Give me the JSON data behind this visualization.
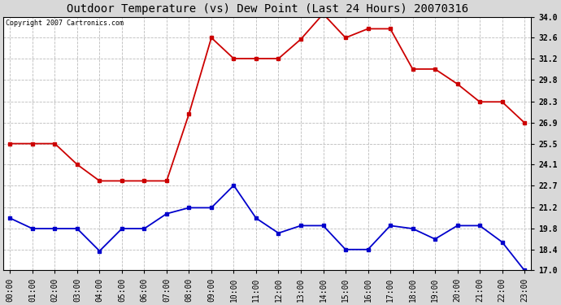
{
  "title": "Outdoor Temperature (vs) Dew Point (Last 24 Hours) 20070316",
  "copyright": "Copyright 2007 Cartronics.com",
  "hours": [
    "00:00",
    "01:00",
    "02:00",
    "03:00",
    "04:00",
    "05:00",
    "06:00",
    "07:00",
    "08:00",
    "09:00",
    "10:00",
    "11:00",
    "12:00",
    "13:00",
    "14:00",
    "15:00",
    "16:00",
    "17:00",
    "18:00",
    "19:00",
    "20:00",
    "21:00",
    "22:00",
    "23:00"
  ],
  "temp": [
    25.5,
    25.5,
    25.5,
    24.1,
    23.0,
    23.0,
    23.0,
    23.0,
    27.5,
    32.6,
    31.2,
    31.2,
    31.2,
    32.5,
    34.2,
    32.6,
    33.2,
    33.2,
    30.5,
    30.5,
    29.5,
    28.3,
    28.3,
    26.9
  ],
  "dew": [
    20.5,
    19.8,
    19.8,
    19.8,
    18.3,
    19.8,
    19.8,
    20.8,
    21.2,
    21.2,
    22.7,
    20.5,
    19.5,
    20.0,
    20.0,
    18.4,
    18.4,
    20.0,
    19.8,
    19.1,
    20.0,
    20.0,
    18.9,
    17.0
  ],
  "temp_color": "#cc0000",
  "dew_color": "#0000cc",
  "ytick_values": [
    17.0,
    18.4,
    19.8,
    21.2,
    22.7,
    24.1,
    25.5,
    26.9,
    28.3,
    29.8,
    31.2,
    32.6,
    34.0
  ],
  "ytick_labels": [
    "17.0",
    "18.4",
    "19.8",
    "21.2",
    "22.7",
    "24.1",
    "25.5",
    "26.9",
    "28.3",
    "29.8",
    "31.2",
    "32.6",
    "34.0"
  ],
  "ymin": 17.0,
  "ymax": 34.0,
  "fig_bg": "#d8d8d8",
  "plot_bg": "#ffffff",
  "grid_color": "#bbbbbb",
  "title_fontsize": 10,
  "copyright_fontsize": 6,
  "tick_fontsize": 7,
  "marker_style": "s",
  "marker_size": 3,
  "line_width": 1.3
}
